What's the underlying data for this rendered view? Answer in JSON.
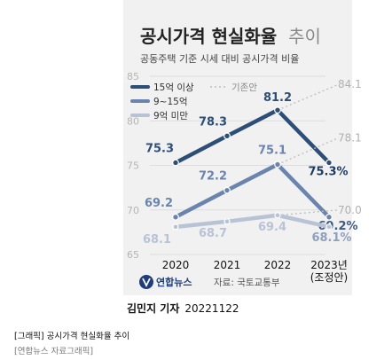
{
  "colors": {
    "s15": "#2d4e77",
    "s9": "#6b84ad",
    "s9less": "#b9c3d6",
    "prev_line": "#bdbdbd",
    "prev_label": "#b0b0b0",
    "card_bg": "#f1f1f1",
    "grid": "#dddddd"
  },
  "icons": {
    "logo": "yonhap-logo-icon"
  },
  "credit": {
    "reporter": "김민지 기자",
    "date": "20221122"
  },
  "caption": {
    "title": "[그래픽] 공시가격 현실화율 추이",
    "source": "[연합뉴스 자료그래픽]"
  },
  "chart_data": {
    "type": "line",
    "title": "공시가격 현실화율",
    "title_suffix": "추이",
    "subtitle": "공동주택 기준 시세 대비 공시가격 비율",
    "categories": [
      "2020",
      "2021",
      "2022",
      "2023년"
    ],
    "category_note": "(조정안)",
    "yticks": [
      "85",
      "80",
      "75",
      "70",
      "65"
    ],
    "ylim": [
      65,
      85
    ],
    "grid": true,
    "legend_position": "top-left",
    "legend_note": "기존안",
    "source": "자료: 국토교통부",
    "logo_text": "연합뉴스",
    "series": [
      {
        "name": "15억 이상",
        "values": [
          75.3,
          78.3,
          81.2,
          75.3
        ],
        "labels": [
          "75.3",
          "78.3",
          "81.2",
          "75.3%"
        ],
        "existing_plan": {
          "value": 84.1,
          "label": "84.1"
        }
      },
      {
        "name": "9~15억",
        "values": [
          69.2,
          72.2,
          75.1,
          69.2
        ],
        "labels": [
          "69.2",
          "72.2",
          "75.1",
          "69.2%"
        ],
        "existing_plan": {
          "value": 78.1,
          "label": "78.1"
        }
      },
      {
        "name": "9억 미만",
        "values": [
          68.1,
          68.7,
          69.4,
          68.1
        ],
        "labels": [
          "68.1",
          "68.7",
          "69.4",
          "68.1%"
        ],
        "existing_plan": {
          "value": 70.0,
          "label": "70.0"
        }
      }
    ]
  }
}
